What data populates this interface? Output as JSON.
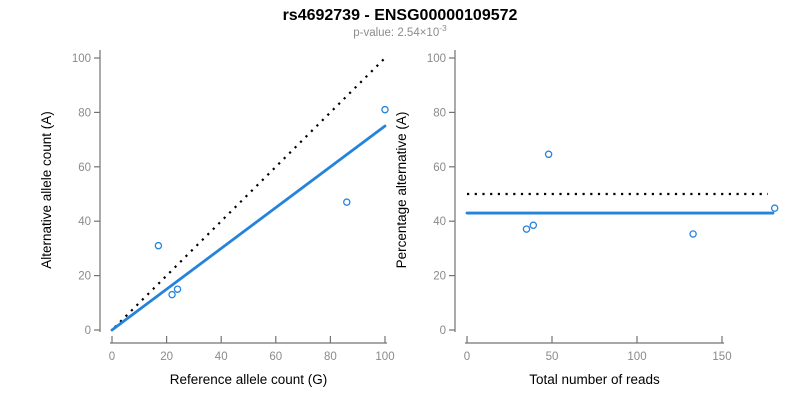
{
  "header": {
    "title": "rs4692739 - ENSG00000109572",
    "pvalue_text": "p-value: 2.54×10",
    "pvalue_exponent": "-3"
  },
  "colors": {
    "accent_blue": "#2583dc",
    "identity_black": "#000000",
    "axis_line_gray": "#737373",
    "tick_label_gray": "#8a8a8a",
    "axis_label_black": "#000000",
    "subtitle_gray": "#8c8c8c"
  },
  "chart_data": [
    {
      "type": "scatter",
      "name": "allele-counts",
      "xlabel": "Reference allele count (G)",
      "ylabel": "Alternative allele count (A)",
      "xlim": [
        0,
        102
      ],
      "ylim": [
        0,
        100
      ],
      "xticks": [
        0,
        20,
        40,
        60,
        80,
        100
      ],
      "yticks": [
        0,
        20,
        40,
        60,
        80,
        100
      ],
      "grid": false,
      "point_color": "#2583dc",
      "points": [
        [
          17,
          31
        ],
        [
          22,
          13
        ],
        [
          24,
          15
        ],
        [
          86,
          47
        ],
        [
          100,
          81
        ]
      ],
      "lines": [
        {
          "name": "identity-line",
          "style": "dotted",
          "color": "#000000",
          "x1": 1,
          "y1": 1,
          "x2": 100,
          "y2": 100
        },
        {
          "name": "regression-line",
          "style": "solid",
          "color": "#2583dc",
          "x1": 0,
          "y1": 0,
          "x2": 100,
          "y2": 75
        }
      ]
    },
    {
      "type": "scatter",
      "name": "percentage-vs-reads",
      "xlabel": "Total number of reads",
      "ylabel": "Percentage alternative (A)",
      "xlim": [
        0,
        183
      ],
      "ylim": [
        0,
        100
      ],
      "xticks": [
        0,
        50,
        100,
        150
      ],
      "yticks": [
        0,
        20,
        40,
        60,
        80,
        100
      ],
      "grid": false,
      "point_color": "#2583dc",
      "points": [
        [
          48,
          64.6
        ],
        [
          35,
          37.1
        ],
        [
          39,
          38.5
        ],
        [
          133,
          35.3
        ],
        [
          181,
          44.8
        ]
      ],
      "lines": [
        {
          "name": "null-expectation-line",
          "style": "dotted",
          "color": "#000000",
          "x1": 0,
          "y1": 50,
          "x2": 177,
          "y2": 50
        },
        {
          "name": "mean-percentage-line",
          "style": "solid",
          "color": "#2583dc",
          "x1": 0,
          "y1": 43,
          "x2": 180,
          "y2": 43
        }
      ]
    }
  ]
}
